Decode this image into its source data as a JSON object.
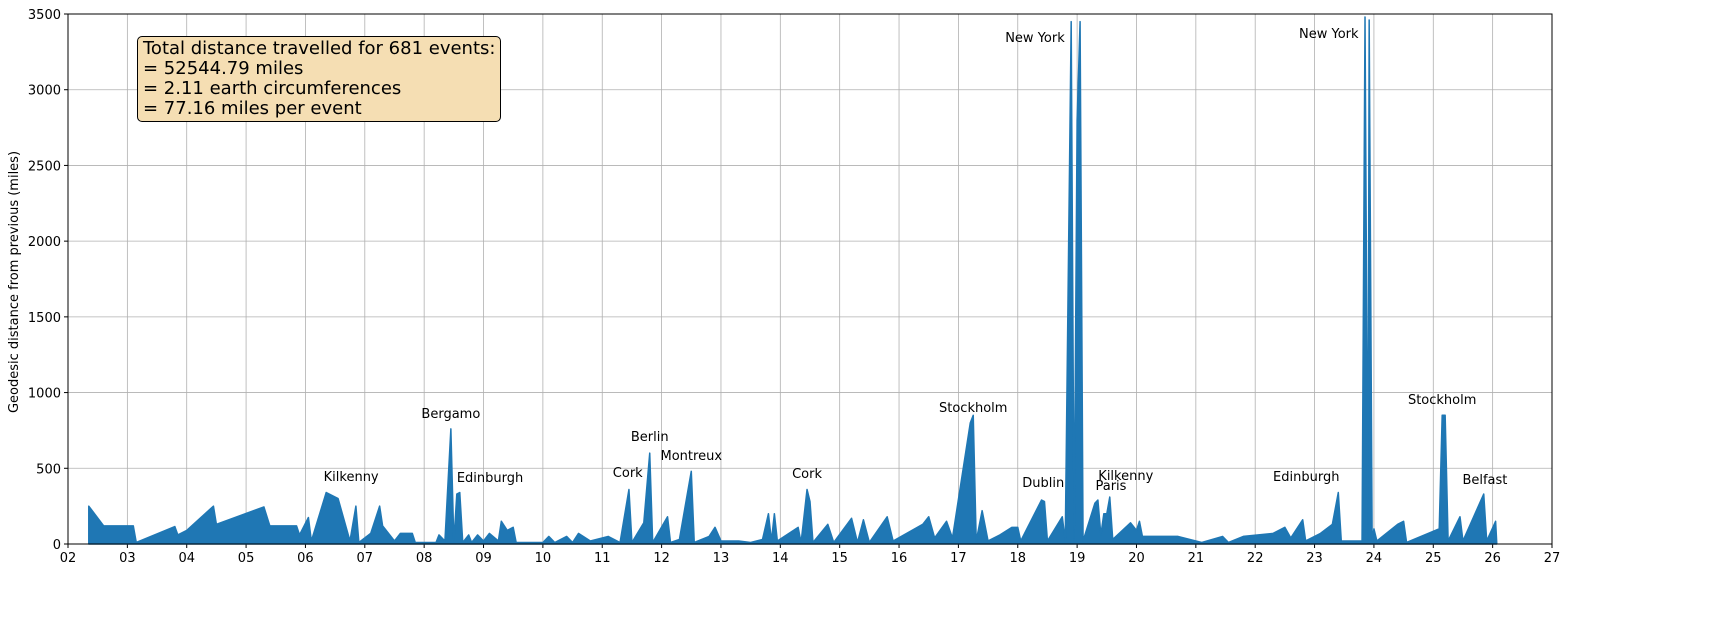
{
  "chart_data": {
    "type": "area",
    "ylabel": "Geodesic distance from previous (miles)",
    "text_box": [
      "Total distance travelled for 681 events:",
      "= 52544.79 miles",
      "= 2.11 earth circumferences",
      "= 77.16 miles per event"
    ],
    "xlim": [
      2,
      27
    ],
    "ylim": [
      0,
      3500
    ],
    "xticks": [
      {
        "value": 2,
        "label": "02"
      },
      {
        "value": 3,
        "label": "03"
      },
      {
        "value": 4,
        "label": "04"
      },
      {
        "value": 5,
        "label": "05"
      },
      {
        "value": 6,
        "label": "06"
      },
      {
        "value": 7,
        "label": "07"
      },
      {
        "value": 8,
        "label": "08"
      },
      {
        "value": 9,
        "label": "09"
      },
      10,
      11,
      12,
      13,
      14,
      15,
      16,
      17,
      18,
      19,
      20,
      21,
      22,
      23,
      24,
      25,
      26,
      27
    ],
    "yticks": [
      0,
      500,
      1000,
      1500,
      2000,
      2500,
      3000,
      3500
    ],
    "grid": true,
    "series": [
      {
        "color": "#1f77b4",
        "x": [
          2.35,
          2.6,
          3.1,
          3.15,
          3.8,
          3.85,
          4.0,
          4.45,
          4.5,
          5.3,
          5.4,
          5.85,
          5.9,
          6.05,
          6.1,
          6.35,
          6.55,
          6.75,
          6.85,
          6.9,
          7.1,
          7.25,
          7.3,
          7.5,
          7.6,
          7.8,
          7.85,
          8.2,
          8.25,
          8.35,
          8.45,
          8.5,
          8.55,
          8.6,
          8.65,
          8.75,
          8.8,
          8.9,
          9.0,
          9.1,
          9.25,
          9.3,
          9.4,
          9.5,
          9.55,
          10.0,
          10.1,
          10.2,
          10.4,
          10.5,
          10.6,
          10.8,
          11.1,
          11.3,
          11.45,
          11.5,
          11.7,
          11.8,
          11.85,
          12.1,
          12.15,
          12.3,
          12.5,
          12.55,
          12.8,
          12.9,
          13.0,
          13.3,
          13.5,
          13.7,
          13.8,
          13.85,
          13.9,
          13.95,
          14.3,
          14.35,
          14.45,
          14.5,
          14.55,
          14.8,
          14.9,
          15.2,
          15.3,
          15.4,
          15.5,
          15.8,
          15.9,
          16.4,
          16.5,
          16.6,
          16.8,
          16.9,
          17.2,
          17.25,
          17.3,
          17.4,
          17.5,
          17.7,
          17.9,
          18.0,
          18.05,
          18.4,
          18.45,
          18.5,
          18.75,
          18.8,
          18.9,
          18.95,
          19.0,
          19.05,
          19.1,
          19.3,
          19.35,
          19.4,
          19.45,
          19.5,
          19.55,
          19.6,
          19.9,
          20.0,
          20.05,
          20.1,
          20.7,
          21.1,
          21.45,
          21.55,
          21.8,
          22.3,
          22.5,
          22.6,
          22.8,
          22.85,
          23.1,
          23.3,
          23.4,
          23.45,
          23.8,
          23.85,
          23.9,
          23.92,
          23.97,
          24.0,
          24.05,
          24.4,
          24.5,
          24.55,
          25.1,
          25.15,
          25.2,
          25.25,
          25.45,
          25.5,
          25.85,
          25.9,
          26.05,
          26.07
        ],
        "values": [
          250,
          120,
          120,
          10,
          115,
          60,
          90,
          250,
          130,
          245,
          120,
          120,
          60,
          175,
          20,
          340,
          300,
          20,
          250,
          10,
          70,
          250,
          120,
          20,
          70,
          70,
          10,
          10,
          60,
          20,
          760,
          10,
          330,
          340,
          10,
          60,
          10,
          60,
          20,
          70,
          20,
          150,
          90,
          110,
          10,
          10,
          50,
          10,
          50,
          10,
          70,
          20,
          50,
          10,
          360,
          10,
          140,
          600,
          10,
          180,
          10,
          30,
          480,
          10,
          50,
          110,
          20,
          20,
          10,
          30,
          200,
          20,
          200,
          20,
          110,
          10,
          360,
          280,
          10,
          130,
          10,
          170,
          10,
          160,
          10,
          180,
          20,
          130,
          180,
          40,
          150,
          40,
          800,
          850,
          20,
          220,
          20,
          60,
          110,
          110,
          20,
          290,
          280,
          20,
          180,
          20,
          3450,
          20,
          2800,
          3450,
          20,
          270,
          290,
          60,
          200,
          200,
          310,
          30,
          140,
          90,
          150,
          50,
          50,
          10,
          50,
          10,
          50,
          70,
          110,
          40,
          160,
          20,
          70,
          130,
          340,
          20,
          20,
          3480,
          20,
          3460,
          20,
          100,
          20,
          130,
          150,
          10,
          100,
          850,
          850,
          20,
          180,
          20,
          330,
          20,
          150,
          0
        ]
      }
    ],
    "annotations": [
      {
        "text": "Kilkenny",
        "x": 6.77,
        "y": 449
      },
      {
        "text": "Bergamo",
        "x": 8.45,
        "y": 865
      },
      {
        "text": "Edinburgh",
        "x": 9.11,
        "y": 443
      },
      {
        "text": "Cork",
        "x": 11.43,
        "y": 476
      },
      {
        "text": "Berlin",
        "x": 11.8,
        "y": 713
      },
      {
        "text": "Montreux",
        "x": 12.5,
        "y": 588
      },
      {
        "text": "Cork",
        "x": 14.45,
        "y": 469
      },
      {
        "text": "Stockholm",
        "x": 17.25,
        "y": 905
      },
      {
        "text": "Dublin",
        "x": 18.43,
        "y": 410
      },
      {
        "text": "New York",
        "x": 18.29,
        "y": 3349
      },
      {
        "text": "Kilkenny",
        "x": 19.82,
        "y": 456
      },
      {
        "text": "Paris",
        "x": 19.57,
        "y": 390
      },
      {
        "text": "New York",
        "x": 23.24,
        "y": 3375
      },
      {
        "text": "Edinburgh",
        "x": 22.86,
        "y": 449
      },
      {
        "text": "Stockholm",
        "x": 25.15,
        "y": 958
      },
      {
        "text": "Belfast",
        "x": 25.87,
        "y": 429
      }
    ]
  }
}
